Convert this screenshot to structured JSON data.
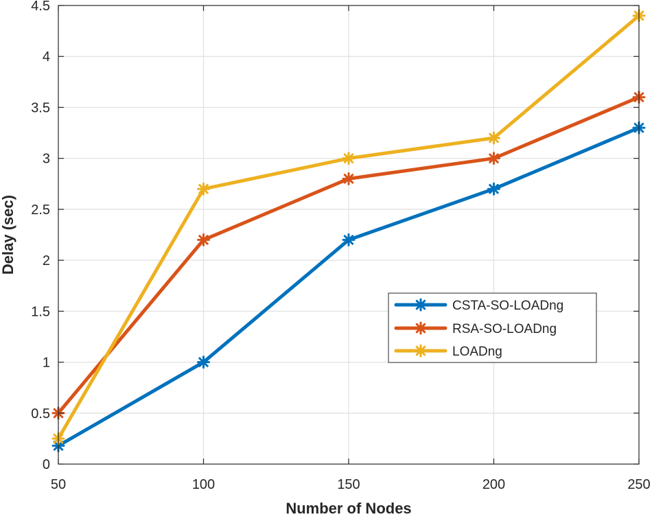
{
  "chart_data": {
    "type": "line",
    "title": "",
    "xlabel": "Number of Nodes",
    "ylabel": "Delay (sec)",
    "x": [
      50,
      100,
      150,
      200,
      250
    ],
    "xlim": [
      50,
      250
    ],
    "ylim": [
      0,
      4.5
    ],
    "xticks": [
      50,
      100,
      150,
      200,
      250
    ],
    "yticks": [
      0,
      0.5,
      1,
      1.5,
      2,
      2.5,
      3,
      3.5,
      4,
      4.5
    ],
    "xtick_labels": [
      "50",
      "100",
      "150",
      "200",
      "250"
    ],
    "ytick_labels": [
      "0",
      "0.5",
      "1",
      "1.5",
      "2",
      "2.5",
      "3",
      "3.5",
      "4",
      "4.5"
    ],
    "grid": true,
    "legend_position": "center-right",
    "marker": "asterisk",
    "series": [
      {
        "name": "CSTA-SO-LOADng",
        "color": "#0072BD",
        "values": [
          0.18,
          1.0,
          2.2,
          2.7,
          3.3
        ]
      },
      {
        "name": "RSA-SO-LOADng",
        "color": "#D95319",
        "values": [
          0.5,
          2.2,
          2.8,
          3.0,
          3.6
        ]
      },
      {
        "name": "LOADng",
        "color": "#EDB120",
        "values": [
          0.25,
          2.7,
          3.0,
          3.2,
          4.4
        ]
      }
    ]
  }
}
